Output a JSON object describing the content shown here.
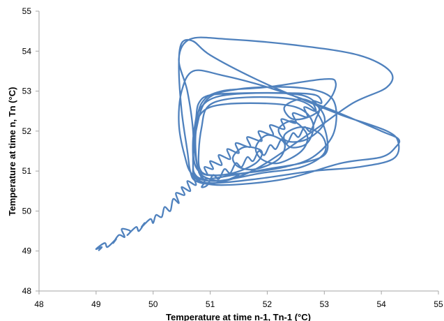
{
  "chart_data": {
    "type": "line",
    "title": "",
    "xlabel": "Temperature at time n-1, Tn-1 (°C)",
    "ylabel": "Temperature at time n, Tn (°C)",
    "xlim": [
      48,
      55
    ],
    "ylim": [
      48,
      55
    ],
    "x_ticks": [
      "48",
      "49",
      "50",
      "51",
      "52",
      "53",
      "54",
      "55"
    ],
    "y_ticks": [
      "48",
      "49",
      "50",
      "51",
      "52",
      "53",
      "54",
      "55"
    ],
    "grid": false,
    "legend": "none",
    "series": [
      {
        "color": "#4f81bd",
        "points": [
          [
            49.05,
            49.02
          ],
          [
            49.1,
            49.1
          ],
          [
            49.0,
            49.05
          ],
          [
            49.15,
            49.2
          ],
          [
            49.2,
            49.1
          ],
          [
            49.35,
            49.3
          ],
          [
            49.3,
            49.2
          ],
          [
            49.4,
            49.4
          ],
          [
            49.5,
            49.35
          ],
          [
            49.45,
            49.55
          ],
          [
            49.6,
            49.5
          ],
          [
            49.55,
            49.4
          ],
          [
            49.7,
            49.6
          ],
          [
            49.75,
            49.5
          ],
          [
            49.85,
            49.7
          ],
          [
            49.8,
            49.6
          ],
          [
            49.95,
            49.8
          ],
          [
            50.0,
            49.7
          ],
          [
            50.05,
            49.9
          ],
          [
            50.15,
            49.85
          ],
          [
            50.2,
            50.1
          ],
          [
            50.3,
            50.0
          ],
          [
            50.35,
            50.3
          ],
          [
            50.45,
            50.2
          ],
          [
            50.4,
            50.45
          ],
          [
            50.55,
            50.4
          ],
          [
            50.5,
            50.6
          ],
          [
            50.65,
            50.5
          ],
          [
            50.6,
            50.75
          ],
          [
            50.75,
            50.65
          ],
          [
            50.7,
            50.9
          ],
          [
            50.85,
            50.8
          ],
          [
            50.8,
            51.0
          ],
          [
            50.95,
            50.9
          ],
          [
            50.9,
            51.1
          ],
          [
            51.05,
            51.05
          ],
          [
            51.0,
            51.25
          ],
          [
            51.2,
            51.15
          ],
          [
            51.15,
            51.4
          ],
          [
            51.35,
            51.3
          ],
          [
            51.3,
            51.55
          ],
          [
            51.5,
            51.45
          ],
          [
            51.45,
            51.7
          ],
          [
            51.7,
            51.6
          ],
          [
            51.65,
            51.85
          ],
          [
            51.9,
            51.75
          ],
          [
            51.85,
            52.0
          ],
          [
            52.1,
            51.9
          ],
          [
            52.05,
            52.15
          ],
          [
            52.3,
            52.05
          ],
          [
            52.25,
            52.3
          ],
          [
            52.5,
            52.2
          ],
          [
            52.45,
            52.45
          ],
          [
            52.7,
            52.35
          ],
          [
            52.65,
            52.6
          ],
          [
            52.85,
            52.5
          ],
          [
            52.8,
            52.75
          ],
          [
            52.95,
            52.7
          ],
          [
            52.85,
            52.9
          ],
          [
            52.4,
            52.95
          ],
          [
            51.6,
            52.95
          ],
          [
            51.0,
            52.9
          ],
          [
            50.8,
            52.7
          ],
          [
            50.75,
            52.3
          ],
          [
            50.7,
            51.8
          ],
          [
            50.7,
            51.3
          ],
          [
            50.72,
            50.95
          ],
          [
            50.9,
            50.8
          ],
          [
            51.4,
            50.9
          ],
          [
            52.0,
            51.05
          ],
          [
            52.6,
            51.2
          ],
          [
            53.0,
            51.4
          ],
          [
            53.05,
            51.8
          ],
          [
            52.9,
            52.4
          ],
          [
            52.6,
            52.75
          ],
          [
            52.0,
            52.85
          ],
          [
            51.3,
            52.8
          ],
          [
            50.95,
            52.6
          ],
          [
            50.85,
            52.1
          ],
          [
            50.8,
            51.5
          ],
          [
            50.82,
            51.05
          ],
          [
            51.0,
            50.9
          ],
          [
            51.6,
            50.95
          ],
          [
            52.3,
            51.1
          ],
          [
            52.8,
            51.35
          ],
          [
            53.15,
            51.9
          ],
          [
            53.2,
            52.6
          ],
          [
            53.0,
            52.95
          ],
          [
            52.4,
            53.1
          ],
          [
            51.5,
            53.05
          ],
          [
            50.95,
            52.8
          ],
          [
            50.75,
            52.0
          ],
          [
            50.7,
            51.2
          ],
          [
            50.75,
            50.85
          ],
          [
            51.0,
            50.7
          ],
          [
            51.8,
            50.8
          ],
          [
            52.8,
            51.0
          ],
          [
            53.6,
            51.1
          ],
          [
            54.2,
            51.3
          ],
          [
            54.3,
            51.7
          ],
          [
            54.1,
            52.0
          ],
          [
            53.3,
            52.4
          ],
          [
            52.6,
            52.8
          ],
          [
            51.8,
            53.3
          ],
          [
            51.0,
            53.9
          ],
          [
            50.7,
            54.25
          ],
          [
            50.5,
            54.2
          ],
          [
            50.45,
            53.6
          ],
          [
            50.5,
            52.5
          ],
          [
            50.6,
            51.5
          ],
          [
            50.65,
            51.0
          ],
          [
            50.75,
            50.75
          ],
          [
            51.1,
            50.7
          ],
          [
            51.8,
            51.05
          ],
          [
            52.8,
            52.0
          ],
          [
            53.5,
            52.7
          ],
          [
            54.1,
            53.1
          ],
          [
            54.15,
            53.5
          ],
          [
            53.6,
            53.9
          ],
          [
            52.5,
            54.15
          ],
          [
            51.3,
            54.3
          ],
          [
            50.65,
            54.3
          ],
          [
            50.45,
            53.8
          ],
          [
            50.6,
            53.0
          ],
          [
            50.7,
            52.0
          ],
          [
            50.7,
            51.2
          ],
          [
            50.75,
            50.8
          ],
          [
            51.2,
            50.65
          ],
          [
            52.3,
            50.8
          ],
          [
            53.3,
            51.2
          ],
          [
            54.0,
            51.35
          ],
          [
            54.25,
            51.6
          ],
          [
            54.3,
            51.8
          ],
          [
            54.0,
            52.0
          ],
          [
            53.0,
            52.6
          ],
          [
            52.0,
            53.1
          ],
          [
            51.2,
            53.4
          ],
          [
            50.7,
            53.5
          ],
          [
            50.5,
            53.0
          ],
          [
            50.45,
            52.2
          ],
          [
            50.55,
            51.4
          ],
          [
            50.7,
            50.9
          ],
          [
            51.1,
            50.75
          ],
          [
            51.9,
            50.95
          ],
          [
            52.6,
            51.1
          ],
          [
            53.0,
            51.45
          ],
          [
            52.95,
            51.9
          ],
          [
            52.6,
            52.1
          ],
          [
            52.3,
            51.9
          ],
          [
            52.4,
            51.6
          ],
          [
            52.7,
            51.7
          ],
          [
            52.8,
            52.2
          ],
          [
            52.5,
            52.6
          ],
          [
            51.7,
            52.7
          ],
          [
            51.0,
            52.6
          ],
          [
            50.75,
            52.2
          ],
          [
            50.7,
            51.6
          ],
          [
            50.75,
            51.1
          ],
          [
            50.95,
            50.9
          ],
          [
            51.4,
            50.95
          ],
          [
            51.8,
            51.2
          ],
          [
            51.9,
            51.5
          ],
          [
            51.6,
            51.6
          ],
          [
            51.4,
            51.35
          ],
          [
            51.5,
            51.1
          ],
          [
            51.8,
            51.05
          ],
          [
            52.2,
            51.3
          ],
          [
            52.3,
            51.7
          ],
          [
            52.0,
            51.9
          ],
          [
            51.8,
            51.6
          ],
          [
            51.9,
            51.3
          ],
          [
            52.2,
            51.2
          ],
          [
            52.6,
            51.5
          ],
          [
            52.7,
            51.9
          ],
          [
            52.45,
            52.25
          ],
          [
            52.2,
            52.05
          ],
          [
            52.35,
            51.75
          ],
          [
            52.7,
            51.8
          ],
          [
            53.0,
            52.2
          ],
          [
            52.9,
            52.6
          ],
          [
            52.6,
            52.8
          ],
          [
            52.3,
            52.6
          ],
          [
            52.45,
            52.3
          ],
          [
            52.8,
            52.4
          ],
          [
            53.1,
            52.8
          ],
          [
            53.2,
            53.2
          ],
          [
            53.0,
            53.3
          ],
          [
            52.0,
            53.1
          ],
          [
            51.2,
            53.0
          ],
          [
            50.85,
            52.7
          ],
          [
            50.75,
            52.0
          ],
          [
            50.75,
            51.4
          ],
          [
            50.8,
            51.0
          ],
          [
            50.9,
            50.75
          ],
          [
            50.85,
            50.6
          ],
          [
            50.95,
            50.65
          ],
          [
            51.05,
            50.9
          ],
          [
            51.15,
            50.8
          ],
          [
            51.25,
            51.05
          ],
          [
            51.35,
            50.95
          ],
          [
            51.45,
            51.2
          ],
          [
            51.55,
            51.1
          ],
          [
            51.65,
            51.35
          ],
          [
            51.75,
            51.25
          ],
          [
            51.85,
            51.5
          ],
          [
            51.95,
            51.4
          ],
          [
            52.05,
            51.65
          ],
          [
            52.15,
            51.55
          ],
          [
            52.25,
            51.8
          ],
          [
            52.35,
            51.7
          ],
          [
            52.45,
            51.95
          ],
          [
            52.55,
            51.85
          ],
          [
            52.65,
            52.1
          ],
          [
            52.75,
            52.0
          ],
          [
            52.85,
            52.3
          ],
          [
            52.9,
            52.6
          ],
          [
            52.6,
            52.9
          ],
          [
            51.8,
            52.95
          ],
          [
            51.1,
            52.85
          ],
          [
            50.8,
            52.5
          ],
          [
            50.72,
            51.9
          ],
          [
            50.75,
            51.3
          ],
          [
            50.85,
            50.9
          ],
          [
            51.2,
            50.75
          ],
          [
            51.5,
            50.9
          ]
        ]
      }
    ]
  }
}
